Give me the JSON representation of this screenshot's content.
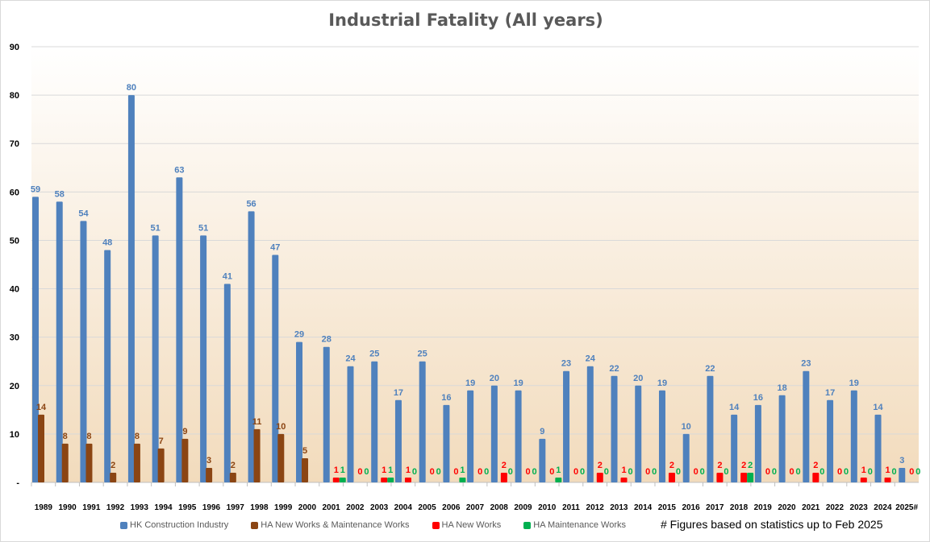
{
  "chart_data": {
    "type": "bar",
    "title": "Industrial Fatality (All years)",
    "footnote": "# Figures based on statistics up to Feb 2025",
    "ylim": [
      0,
      90
    ],
    "yticks": [
      "-",
      "10",
      "20",
      "30",
      "40",
      "50",
      "60",
      "70",
      "80",
      "90"
    ],
    "grid": true,
    "legend_position": "bottom",
    "categories": [
      "1989",
      "1990",
      "1991",
      "1992",
      "1993",
      "1994",
      "1995",
      "1996",
      "1997",
      "1998",
      "1999",
      "2000",
      "2001",
      "2002",
      "2003",
      "2004",
      "2005",
      "2006",
      "2007",
      "2008",
      "2009",
      "2010",
      "2011",
      "2012",
      "2013",
      "2014",
      "2015",
      "2016",
      "2017",
      "2018",
      "2019",
      "2020",
      "2021",
      "2022",
      "2023",
      "2024",
      "2025#"
    ],
    "series": [
      {
        "name": "HK Construction Industry",
        "color": "#4f81bd",
        "label_color": "#4f81bd",
        "values": [
          59,
          58,
          54,
          48,
          80,
          51,
          63,
          51,
          41,
          56,
          47,
          29,
          28,
          24,
          25,
          17,
          25,
          16,
          19,
          20,
          19,
          9,
          23,
          24,
          22,
          20,
          19,
          10,
          22,
          14,
          16,
          18,
          23,
          17,
          19,
          14,
          3
        ]
      },
      {
        "name": "HA New Works & Maintenance Works",
        "color": "#8b4513",
        "label_color": "#8b4513",
        "values": [
          14,
          8,
          8,
          2,
          8,
          7,
          9,
          3,
          2,
          11,
          10,
          5,
          null,
          null,
          null,
          null,
          null,
          null,
          null,
          null,
          null,
          null,
          null,
          null,
          null,
          null,
          null,
          null,
          null,
          null,
          null,
          null,
          null,
          null,
          null,
          null,
          null
        ]
      },
      {
        "name": "HA New Works",
        "color": "#ff0000",
        "label_color": "#ff0000",
        "values": [
          null,
          null,
          null,
          null,
          null,
          null,
          null,
          null,
          null,
          null,
          null,
          null,
          1,
          0,
          1,
          1,
          0,
          0,
          0,
          2,
          0,
          0,
          0,
          2,
          1,
          0,
          2,
          0,
          2,
          2,
          0,
          0,
          2,
          0,
          1,
          1,
          0
        ]
      },
      {
        "name": "HA Maintenance Works",
        "color": "#00b050",
        "label_color": "#00b050",
        "values": [
          null,
          null,
          null,
          null,
          null,
          null,
          null,
          null,
          null,
          null,
          null,
          null,
          1,
          0,
          1,
          0,
          0,
          1,
          0,
          0,
          0,
          1,
          0,
          0,
          0,
          0,
          0,
          0,
          0,
          2,
          0,
          0,
          0,
          0,
          0,
          0,
          0
        ]
      }
    ]
  }
}
